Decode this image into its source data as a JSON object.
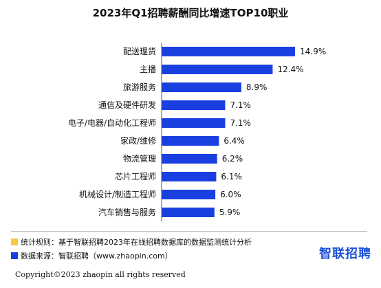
{
  "chart_data": {
    "type": "bar",
    "orientation": "horizontal",
    "title": "2023年Q1招聘薪酬同比增速TOP10职业",
    "categories": [
      "配送理货",
      "主播",
      "旅游服务",
      "通信及硬件研发",
      "电子/电器/自动化工程师",
      "家政/维修",
      "物流管理",
      "芯片工程师",
      "机械设计/制造工程师",
      "汽车销售与服务"
    ],
    "values": [
      14.9,
      12.4,
      8.9,
      7.1,
      7.1,
      6.4,
      6.2,
      6.1,
      6.0,
      5.9
    ],
    "value_labels": [
      "14.9%",
      "12.4%",
      "8.9%",
      "7.1%",
      "7.1%",
      "6.4%",
      "6.2%",
      "6.1%",
      "6.0%",
      "5.9%"
    ],
    "xlabel": "",
    "ylabel": "",
    "xlim": [
      0,
      16
    ],
    "grid": false,
    "bar_color": "#1a3fe0"
  },
  "footer": {
    "rule_note": "统计规则：基于智联招聘2023年在线招聘数据库的数据监测统计分析",
    "rule_color": "#f5c842",
    "source_note": "数据来源：智联招聘（www.zhaopin.com）",
    "source_color": "#1a3fe0",
    "brand": "智联招聘",
    "copyright": "Copyright©2023 zhaopin all rights reserved"
  }
}
